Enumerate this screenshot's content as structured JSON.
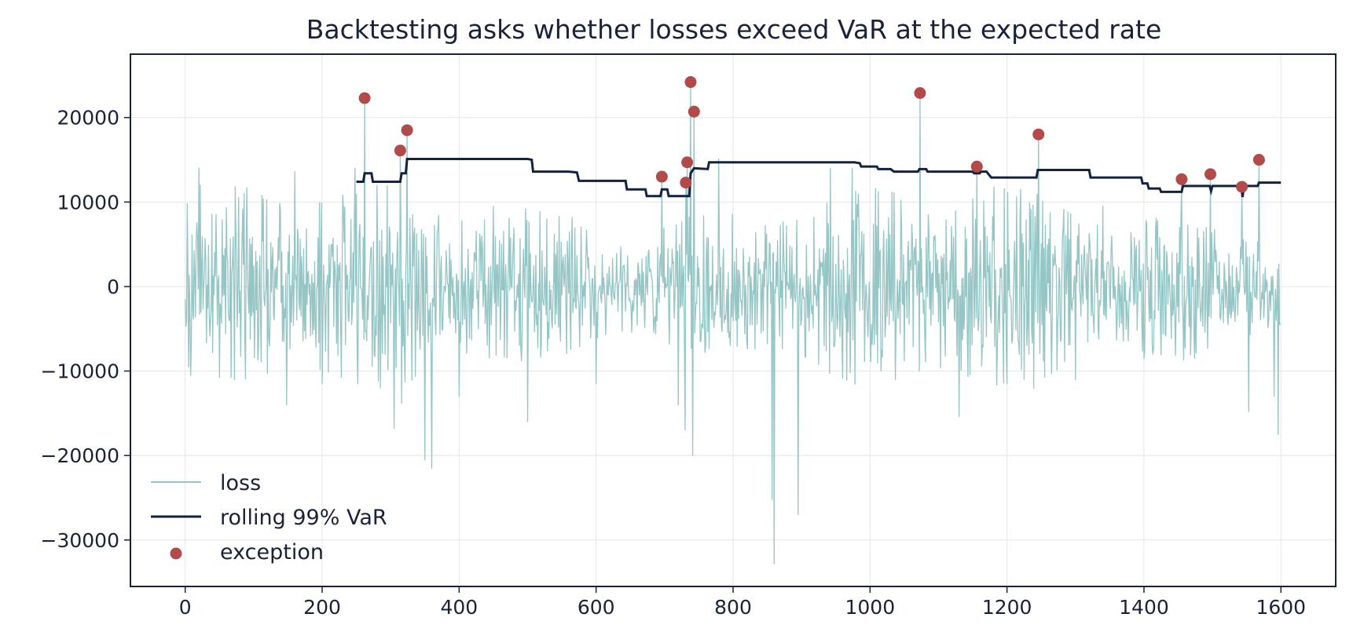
{
  "chart_data": {
    "type": "line",
    "title": "Backtesting asks whether losses exceed VaR at the expected rate",
    "xlabel": "",
    "ylabel": "",
    "xlim": [
      -80,
      1680
    ],
    "ylim": [
      -35500,
      27500
    ],
    "x_ticks": [
      0,
      200,
      400,
      600,
      800,
      1000,
      1200,
      1400,
      1600
    ],
    "x_tick_labels": [
      "0",
      "200",
      "400",
      "600",
      "800",
      "1000",
      "1200",
      "1400",
      "1600"
    ],
    "y_ticks": [
      20000,
      10000,
      0,
      -10000,
      -20000,
      -30000
    ],
    "y_tick_labels": [
      "20000",
      "10000",
      "0",
      "−10000",
      "−20000",
      "−30000"
    ],
    "grid": true,
    "legend_position": "lower-left",
    "colors": {
      "loss": "#95c5c5",
      "var": "#13223f",
      "exception": "#b24a4a",
      "axis": "#1a2238",
      "grid": "#e6e6e6"
    },
    "series": [
      {
        "name": "loss",
        "kind": "line",
        "n_points": 1600,
        "typical_std": 4800,
        "anchors": [
          [
            0,
            -1500
          ],
          [
            3,
            9800
          ],
          [
            8,
            -10500
          ],
          [
            20,
            14000
          ],
          [
            22,
            12000
          ],
          [
            40,
            -7800
          ],
          [
            60,
            9300
          ],
          [
            148,
            -14000
          ],
          [
            160,
            13600
          ],
          [
            200,
            -11500
          ],
          [
            248,
            14000
          ],
          [
            262,
            22300
          ],
          [
            305,
            -16800
          ],
          [
            314,
            16100
          ],
          [
            316,
            -13800
          ],
          [
            324,
            18500
          ],
          [
            350,
            -20500
          ],
          [
            360,
            -21500
          ],
          [
            400,
            -13000
          ],
          [
            450,
            9500
          ],
          [
            500,
            -16000
          ],
          [
            600,
            -11500
          ],
          [
            696,
            13000
          ],
          [
            720,
            -14000
          ],
          [
            730,
            -17000
          ],
          [
            731,
            12300
          ],
          [
            733,
            14700
          ],
          [
            738,
            24200
          ],
          [
            741,
            -20000
          ],
          [
            743,
            20700
          ],
          [
            779,
            15100
          ],
          [
            857,
            -25200
          ],
          [
            860,
            -32800
          ],
          [
            895,
            -27000
          ],
          [
            942,
            14000
          ],
          [
            974,
            14000
          ],
          [
            1073,
            22900
          ],
          [
            1130,
            -15400
          ],
          [
            1156,
            14200
          ],
          [
            1200,
            -11500
          ],
          [
            1246,
            18000
          ],
          [
            1300,
            -11000
          ],
          [
            1340,
            9500
          ],
          [
            1400,
            -8500
          ],
          [
            1455,
            12700
          ],
          [
            1497,
            13300
          ],
          [
            1543,
            11800
          ],
          [
            1553,
            -14800
          ],
          [
            1568,
            15000
          ],
          [
            1590,
            -13000
          ],
          [
            1596,
            -17500
          ],
          [
            1599,
            -4300
          ]
        ]
      },
      {
        "name": "rolling 99% VaR",
        "kind": "step",
        "points": [
          [
            250,
            12400
          ],
          [
            260,
            12400
          ],
          [
            262,
            13400
          ],
          [
            272,
            13400
          ],
          [
            274,
            12400
          ],
          [
            314,
            12400
          ],
          [
            316,
            13400
          ],
          [
            322,
            13400
          ],
          [
            324,
            15100
          ],
          [
            500,
            15100
          ],
          [
            506,
            15000
          ],
          [
            508,
            13600
          ],
          [
            560,
            13600
          ],
          [
            572,
            13500
          ],
          [
            575,
            12500
          ],
          [
            643,
            12500
          ],
          [
            645,
            11500
          ],
          [
            672,
            11500
          ],
          [
            674,
            10700
          ],
          [
            694,
            10700
          ],
          [
            696,
            11500
          ],
          [
            704,
            11500
          ],
          [
            706,
            10700
          ],
          [
            736,
            10700
          ],
          [
            738,
            13400
          ],
          [
            743,
            14000
          ],
          [
            763,
            13900
          ],
          [
            765,
            14700
          ],
          [
            977,
            14700
          ],
          [
            985,
            14600
          ],
          [
            987,
            14200
          ],
          [
            1010,
            14200
          ],
          [
            1012,
            13900
          ],
          [
            1030,
            13900
          ],
          [
            1035,
            13600
          ],
          [
            1070,
            13600
          ],
          [
            1072,
            13900
          ],
          [
            1082,
            13900
          ],
          [
            1084,
            13600
          ],
          [
            1150,
            13600
          ],
          [
            1152,
            13400
          ],
          [
            1160,
            13400
          ],
          [
            1162,
            13600
          ],
          [
            1170,
            13600
          ],
          [
            1177,
            12900
          ],
          [
            1243,
            12900
          ],
          [
            1245,
            13800
          ],
          [
            1320,
            13800
          ],
          [
            1322,
            12900
          ],
          [
            1396,
            12900
          ],
          [
            1398,
            12200
          ],
          [
            1405,
            12200
          ],
          [
            1407,
            11600
          ],
          [
            1423,
            11600
          ],
          [
            1425,
            11200
          ],
          [
            1455,
            11200
          ],
          [
            1457,
            11900
          ],
          [
            1496,
            11900
          ],
          [
            1498,
            11300
          ],
          [
            1500,
            11900
          ],
          [
            1542,
            11900
          ],
          [
            1544,
            10600
          ],
          [
            1546,
            11900
          ],
          [
            1566,
            11900
          ],
          [
            1568,
            12300
          ],
          [
            1600,
            12300
          ]
        ]
      },
      {
        "name": "exception",
        "kind": "scatter",
        "points": [
          [
            262,
            22300
          ],
          [
            314,
            16100
          ],
          [
            324,
            18500
          ],
          [
            696,
            13000
          ],
          [
            731,
            12300
          ],
          [
            733,
            14700
          ],
          [
            738,
            24200
          ],
          [
            743,
            20700
          ],
          [
            1073,
            22900
          ],
          [
            1156,
            14200
          ],
          [
            1246,
            18000
          ],
          [
            1455,
            12700
          ],
          [
            1497,
            13300
          ],
          [
            1543,
            11800
          ],
          [
            1568,
            15000
          ]
        ]
      }
    ],
    "legend": {
      "entries": [
        "loss",
        "rolling 99% VaR",
        "exception"
      ]
    }
  }
}
